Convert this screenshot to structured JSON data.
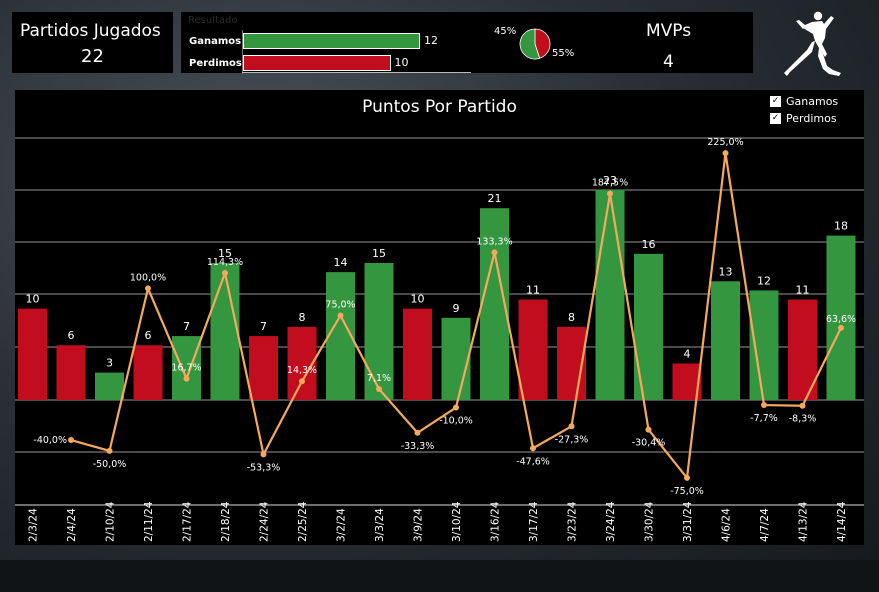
{
  "kpi_games": {
    "title": "Partidos Jugados",
    "value": "22"
  },
  "result": {
    "title": "Resultado",
    "rows": [
      {
        "label": "Ganamos",
        "value": 12,
        "color": "#34963f"
      },
      {
        "label": "Perdimos",
        "value": 10,
        "color": "#c10d1e"
      }
    ]
  },
  "pie": {
    "slices": [
      {
        "label": "45%",
        "fraction": 0.45,
        "color": "#c10d1e"
      },
      {
        "label": "55%",
        "fraction": 0.55,
        "color": "#34963f"
      }
    ]
  },
  "mvps": {
    "title": "MVPs",
    "value": "4"
  },
  "logo_icon": "jumpman-logo",
  "legend": [
    {
      "label": "Ganamos",
      "checked": true
    },
    {
      "label": "Perdimos",
      "checked": true
    }
  ],
  "chart_data": {
    "type": "bar",
    "title": "Puntos Por Partido",
    "categories": [
      "2/3/24",
      "2/4/24",
      "2/10/24",
      "2/11/24",
      "2/17/24",
      "2/18/24",
      "2/24/24",
      "2/25/24",
      "3/2/24",
      "3/3/24",
      "3/9/24",
      "3/10/24",
      "3/16/24",
      "3/17/24",
      "3/23/24",
      "3/24/24",
      "3/30/24",
      "3/31/24",
      "4/6/24",
      "4/7/24",
      "4/13/24",
      "4/14/24"
    ],
    "values": [
      10,
      6,
      3,
      6,
      7,
      15,
      7,
      8,
      14,
      15,
      10,
      9,
      21,
      11,
      8,
      23,
      16,
      4,
      13,
      12,
      11,
      18
    ],
    "results": [
      "Perdimos",
      "Perdimos",
      "Ganamos",
      "Perdimos",
      "Ganamos",
      "Ganamos",
      "Perdimos",
      "Perdimos",
      "Ganamos",
      "Ganamos",
      "Perdimos",
      "Ganamos",
      "Ganamos",
      "Perdimos",
      "Perdimos",
      "Ganamos",
      "Ganamos",
      "Perdimos",
      "Ganamos",
      "Ganamos",
      "Perdimos",
      "Ganamos"
    ],
    "value_labels": [
      "10",
      "6",
      "3",
      "6",
      "7",
      "15",
      "7",
      "8",
      "14",
      "15",
      "10",
      "9",
      "21",
      "11",
      "8",
      "23",
      "16",
      "4",
      "13",
      "12",
      "11",
      "18"
    ],
    "pct_change": [
      null,
      -40.0,
      -50.0,
      100.0,
      16.7,
      114.3,
      -53.3,
      14.3,
      75.0,
      7.1,
      -33.3,
      -10.0,
      133.3,
      -47.6,
      -27.3,
      187.5,
      -30.4,
      -75.0,
      225.0,
      -7.7,
      -8.3,
      63.6
    ],
    "pct_labels": [
      "",
      "-40,0%",
      "-50,0%",
      "100,0%",
      "16,7%",
      "114,3%",
      "-53,3%",
      "14,3%",
      "75,0%",
      "7,1%",
      "-33,3%",
      "-10,0%",
      "133,3%",
      "-47,6%",
      "-27,3%",
      "187,5%",
      "-30,4%",
      "-75,0%",
      "225,0%",
      "-7,7%",
      "-8,3%",
      "63,6%"
    ],
    "bar_ylim": [
      0,
      30
    ],
    "pct_ylim": [
      -100,
      250
    ],
    "colors": {
      "Ganamos": "#34963f",
      "Perdimos": "#c10d1e",
      "line": "#f5a95c"
    },
    "grid": true,
    "legend_position": "top-right"
  }
}
